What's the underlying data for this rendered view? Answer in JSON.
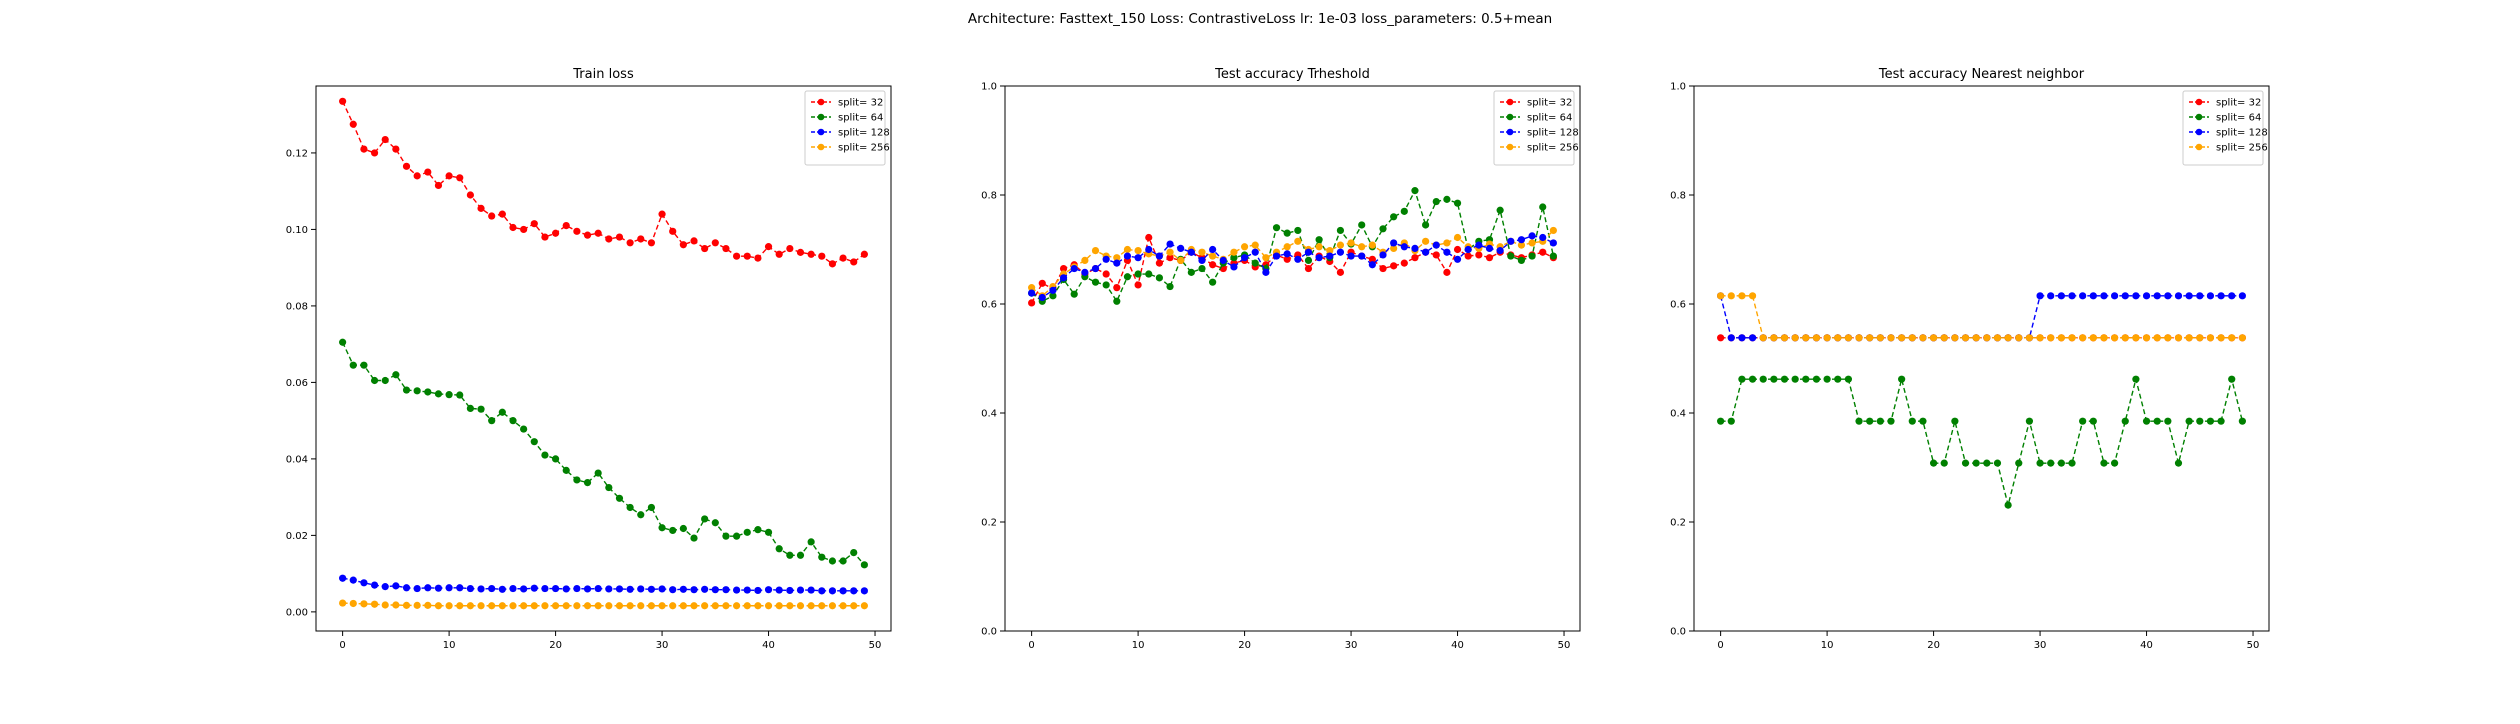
{
  "figure": {
    "suptitle": "Architecture: Fasttext_150 Loss: ContrastiveLoss lr: 1e-03 loss_parameters: 0.5+mean"
  },
  "chart_data": [
    {
      "type": "line",
      "title": "Train loss",
      "xlabel": "",
      "ylabel": "",
      "xlim": [
        -2.5,
        51.5
      ],
      "ylim": [
        -0.005,
        0.1375
      ],
      "xticks": [
        0,
        10,
        20,
        30,
        40,
        50
      ],
      "yticks": [
        0.0,
        0.02,
        0.04,
        0.06,
        0.08,
        0.1,
        0.12
      ],
      "ytick_labels": [
        "0.00",
        "0.02",
        "0.04",
        "0.06",
        "0.08",
        "0.10",
        "0.12"
      ],
      "grid": false,
      "legend_placement": "upper right",
      "markers": "o",
      "linestyle": "dashed",
      "series": [
        {
          "name": "split= 32",
          "color": "#ff0000",
          "values": [
            0.1335,
            0.1275,
            0.121,
            0.12,
            0.1235,
            0.121,
            0.1165,
            0.114,
            0.115,
            0.1115,
            0.114,
            0.1135,
            0.109,
            0.1055,
            0.1035,
            0.104,
            0.1005,
            0.1,
            0.1015,
            0.098,
            0.099,
            0.101,
            0.0995,
            0.0985,
            0.099,
            0.0975,
            0.098,
            0.0965,
            0.0975,
            0.0965,
            0.104,
            0.0995,
            0.096,
            0.097,
            0.095,
            0.0965,
            0.095,
            0.093,
            0.093,
            0.0925,
            0.0955,
            0.0935,
            0.095,
            0.094,
            0.0935,
            0.093,
            0.091,
            0.0925,
            0.0915,
            0.0935
          ]
        },
        {
          "name": "split= 64",
          "color": "#008000",
          "values": [
            0.0705,
            0.0645,
            0.0645,
            0.0605,
            0.0605,
            0.062,
            0.058,
            0.0578,
            0.0575,
            0.057,
            0.0568,
            0.0567,
            0.0532,
            0.053,
            0.05,
            0.0522,
            0.05,
            0.0478,
            0.0445,
            0.041,
            0.04,
            0.037,
            0.0345,
            0.0338,
            0.0363,
            0.0325,
            0.0297,
            0.0273,
            0.0254,
            0.0273,
            0.022,
            0.0213,
            0.0218,
            0.0193,
            0.0243,
            0.0233,
            0.0198,
            0.0198,
            0.0208,
            0.0215,
            0.0208,
            0.0165,
            0.0148,
            0.0148,
            0.0183,
            0.0143,
            0.0133,
            0.0133,
            0.0155,
            0.0123
          ]
        },
        {
          "name": "split= 128",
          "color": "#0000ff",
          "values": [
            0.0088,
            0.0083,
            0.0076,
            0.007,
            0.0066,
            0.0068,
            0.0063,
            0.0061,
            0.0063,
            0.0062,
            0.0063,
            0.0063,
            0.0061,
            0.006,
            0.0061,
            0.0059,
            0.0061,
            0.006,
            0.0062,
            0.0061,
            0.0061,
            0.006,
            0.0061,
            0.006,
            0.0061,
            0.006,
            0.006,
            0.0059,
            0.006,
            0.0059,
            0.006,
            0.0058,
            0.0059,
            0.0058,
            0.0059,
            0.0058,
            0.0058,
            0.0057,
            0.0057,
            0.0056,
            0.0058,
            0.0057,
            0.0056,
            0.0057,
            0.0057,
            0.0055,
            0.0055,
            0.0055,
            0.0055,
            0.0055
          ]
        },
        {
          "name": "split= 256",
          "color": "#ffa500",
          "values": [
            0.0023,
            0.0022,
            0.0021,
            0.002,
            0.0018,
            0.0018,
            0.0017,
            0.0017,
            0.0017,
            0.0016,
            0.0016,
            0.0016,
            0.0016,
            0.0016,
            0.0016,
            0.0016,
            0.0016,
            0.0016,
            0.0016,
            0.0016,
            0.0016,
            0.0016,
            0.0016,
            0.0016,
            0.0016,
            0.0016,
            0.0016,
            0.0016,
            0.0016,
            0.0016,
            0.0016,
            0.0016,
            0.0016,
            0.0016,
            0.0016,
            0.0016,
            0.0016,
            0.0016,
            0.0016,
            0.0016,
            0.0016,
            0.0016,
            0.0016,
            0.0016,
            0.0016,
            0.0016,
            0.0016,
            0.0016,
            0.0016,
            0.0016
          ]
        }
      ]
    },
    {
      "type": "line",
      "title": "Test accuracy Trheshold",
      "xlabel": "",
      "ylabel": "",
      "xlim": [
        -2.5,
        51.5
      ],
      "ylim": [
        0.0,
        1.0
      ],
      "xticks": [
        0,
        10,
        20,
        30,
        40,
        50
      ],
      "yticks": [
        0.0,
        0.2,
        0.4,
        0.6,
        0.8,
        1.0
      ],
      "ytick_labels": [
        "0.0",
        "0.2",
        "0.4",
        "0.6",
        "0.8",
        "1.0"
      ],
      "grid": false,
      "legend_placement": "upper right",
      "markers": "o",
      "linestyle": "dashed",
      "series": [
        {
          "name": "split= 32",
          "color": "#ff0000",
          "values": [
            0.602,
            0.638,
            0.628,
            0.665,
            0.672,
            0.655,
            0.665,
            0.655,
            0.63,
            0.68,
            0.635,
            0.722,
            0.675,
            0.685,
            0.68,
            0.695,
            0.685,
            0.672,
            0.665,
            0.675,
            0.68,
            0.668,
            0.672,
            0.69,
            0.682,
            0.69,
            0.665,
            0.688,
            0.678,
            0.658,
            0.695,
            0.688,
            0.682,
            0.665,
            0.67,
            0.675,
            0.685,
            0.695,
            0.69,
            0.658,
            0.7,
            0.688,
            0.69,
            0.685,
            0.695,
            0.69,
            0.685,
            0.69,
            0.695,
            0.685
          ]
        },
        {
          "name": "split= 64",
          "color": "#008000",
          "values": [
            0.62,
            0.605,
            0.615,
            0.645,
            0.618,
            0.65,
            0.64,
            0.635,
            0.605,
            0.65,
            0.655,
            0.655,
            0.648,
            0.632,
            0.682,
            0.658,
            0.665,
            0.64,
            0.675,
            0.685,
            0.69,
            0.675,
            0.665,
            0.74,
            0.73,
            0.735,
            0.68,
            0.718,
            0.685,
            0.735,
            0.71,
            0.745,
            0.705,
            0.738,
            0.76,
            0.77,
            0.808,
            0.745,
            0.788,
            0.792,
            0.785,
            0.7,
            0.715,
            0.718,
            0.772,
            0.688,
            0.68,
            0.688,
            0.778,
            0.688
          ]
        },
        {
          "name": "split= 256",
          "color": "#ffa500",
          "values": [
            0.63,
            0.615,
            0.632,
            0.655,
            0.668,
            0.68,
            0.698,
            0.688,
            0.685,
            0.7,
            0.698,
            0.692,
            0.688,
            0.695,
            0.68,
            0.7,
            0.695,
            0.688,
            0.682,
            0.695,
            0.705,
            0.708,
            0.685,
            0.695,
            0.705,
            0.715,
            0.7,
            0.705,
            0.698,
            0.708,
            0.712,
            0.705,
            0.708,
            0.695,
            0.702,
            0.712,
            0.698,
            0.715,
            0.708,
            0.712,
            0.722,
            0.705,
            0.702,
            0.71,
            0.705,
            0.715,
            0.708,
            0.712,
            0.715,
            0.735
          ]
        },
        {
          "name": "split= 128",
          "color": "#0000ff",
          "values": [
            0.62,
            0.612,
            0.625,
            0.648,
            0.665,
            0.658,
            0.665,
            0.682,
            0.675,
            0.688,
            0.685,
            0.7,
            0.688,
            0.71,
            0.702,
            0.695,
            0.68,
            0.7,
            0.68,
            0.668,
            0.685,
            0.695,
            0.658,
            0.688,
            0.692,
            0.682,
            0.695,
            0.685,
            0.688,
            0.695,
            0.688,
            0.688,
            0.672,
            0.69,
            0.712,
            0.705,
            0.702,
            0.695,
            0.708,
            0.695,
            0.682,
            0.7,
            0.708,
            0.702,
            0.698,
            0.715,
            0.718,
            0.725,
            0.722,
            0.712
          ]
        }
      ],
      "legend_order": [
        "split= 32",
        "split= 64",
        "split= 128",
        "split= 256"
      ]
    },
    {
      "type": "line",
      "title": "Test accuracy Nearest neighbor",
      "xlabel": "",
      "ylabel": "",
      "xlim": [
        -2.5,
        51.5
      ],
      "ylim": [
        0.0,
        1.0
      ],
      "xticks": [
        0,
        10,
        20,
        30,
        40,
        50
      ],
      "yticks": [
        0.0,
        0.2,
        0.4,
        0.6,
        0.8,
        1.0
      ],
      "ytick_labels": [
        "0.0",
        "0.2",
        "0.4",
        "0.6",
        "0.8",
        "1.0"
      ],
      "grid": false,
      "legend_placement": "upper right",
      "markers": "o",
      "linestyle": "dashed",
      "series": [
        {
          "name": "split= 32",
          "color": "#ff0000",
          "values": [
            0.538,
            0.538,
            0.538,
            0.538,
            0.538,
            0.538,
            0.538,
            0.538,
            0.538,
            0.538,
            0.538,
            0.538,
            0.538,
            0.538,
            0.538,
            0.538,
            0.538,
            0.538,
            0.538,
            0.538,
            0.538,
            0.538,
            0.538,
            0.538,
            0.538,
            0.538,
            0.538,
            0.538,
            0.538,
            0.538,
            0.538,
            0.538,
            0.538,
            0.538,
            0.538,
            0.538,
            0.538,
            0.538,
            0.538,
            0.538,
            0.538,
            0.538,
            0.538,
            0.538,
            0.538,
            0.538,
            0.538,
            0.538,
            0.538,
            0.538
          ]
        },
        {
          "name": "split= 64",
          "color": "#008000",
          "values": [
            0.385,
            0.385,
            0.462,
            0.462,
            0.462,
            0.462,
            0.462,
            0.462,
            0.462,
            0.462,
            0.462,
            0.462,
            0.462,
            0.385,
            0.385,
            0.385,
            0.385,
            0.462,
            0.385,
            0.385,
            0.308,
            0.308,
            0.385,
            0.308,
            0.308,
            0.308,
            0.308,
            0.231,
            0.308,
            0.385,
            0.308,
            0.308,
            0.308,
            0.308,
            0.385,
            0.385,
            0.308,
            0.308,
            0.385,
            0.462,
            0.385,
            0.385,
            0.385,
            0.308,
            0.385,
            0.385,
            0.385,
            0.385,
            0.462,
            0.385
          ]
        },
        {
          "name": "split= 128",
          "color": "#0000ff",
          "values": [
            0.615,
            0.538,
            0.538,
            0.538,
            0.538,
            0.538,
            0.538,
            0.538,
            0.538,
            0.538,
            0.538,
            0.538,
            0.538,
            0.538,
            0.538,
            0.538,
            0.538,
            0.538,
            0.538,
            0.538,
            0.538,
            0.538,
            0.538,
            0.538,
            0.538,
            0.538,
            0.538,
            0.538,
            0.538,
            0.538,
            0.615,
            0.615,
            0.615,
            0.615,
            0.615,
            0.615,
            0.615,
            0.615,
            0.615,
            0.615,
            0.615,
            0.615,
            0.615,
            0.615,
            0.615,
            0.615,
            0.615,
            0.615,
            0.615,
            0.615
          ]
        },
        {
          "name": "split= 256",
          "color": "#ffa500",
          "values": [
            0.615,
            0.615,
            0.615,
            0.615,
            0.538,
            0.538,
            0.538,
            0.538,
            0.538,
            0.538,
            0.538,
            0.538,
            0.538,
            0.538,
            0.538,
            0.538,
            0.538,
            0.538,
            0.538,
            0.538,
            0.538,
            0.538,
            0.538,
            0.538,
            0.538,
            0.538,
            0.538,
            0.538,
            0.538,
            0.538,
            0.538,
            0.538,
            0.538,
            0.538,
            0.538,
            0.538,
            0.538,
            0.538,
            0.538,
            0.538,
            0.538,
            0.538,
            0.538,
            0.538,
            0.538,
            0.538,
            0.538,
            0.538,
            0.538,
            0.538
          ]
        }
      ]
    }
  ]
}
